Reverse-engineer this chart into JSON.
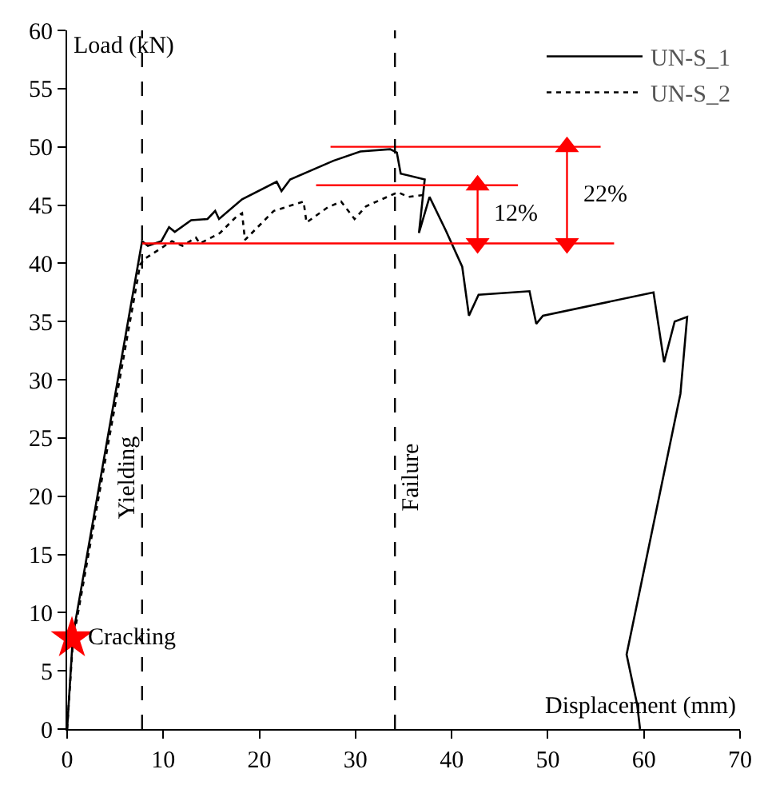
{
  "chart_data": {
    "type": "line",
    "xlabel": "Displacement (mm)",
    "ylabel": "Load (kN)",
    "xlim": [
      0,
      70
    ],
    "xticks": [
      0,
      10,
      20,
      30,
      40,
      50,
      60,
      70
    ],
    "ylim": [
      0,
      60
    ],
    "yticks": [
      0,
      5,
      10,
      15,
      20,
      25,
      30,
      35,
      40,
      45,
      50,
      55,
      60
    ],
    "legend": "top right",
    "marker": "none",
    "series": [
      {
        "name": "UN-S_1",
        "color": "#000000",
        "line_style": "solid",
        "x": [
          0,
          0.6,
          7.8,
          8.4,
          9.8,
          10.6,
          11.2,
          12.9,
          14.6,
          15.4,
          15.8,
          18.2,
          21.8,
          22.3,
          23.2,
          27.7,
          30.5,
          33.6,
          34.3,
          34.7,
          37.2,
          36.6,
          37.7,
          39.4,
          41.1,
          41.8,
          42.8,
          48.1,
          48.8,
          49.5,
          61.0,
          62.1,
          63.2,
          64.5,
          63.8,
          58.2,
          59.3,
          59.6
        ],
        "values": [
          0,
          8,
          41.9,
          41.5,
          41.9,
          43.1,
          42.7,
          43.7,
          43.8,
          44.5,
          43.8,
          45.5,
          47.0,
          46.2,
          47.2,
          48.8,
          49.6,
          49.8,
          49.5,
          47.7,
          47.2,
          42.6,
          45.7,
          42.8,
          39.7,
          35.5,
          37.3,
          37.6,
          34.8,
          35.5,
          37.5,
          31.5,
          35.0,
          35.4,
          28.8,
          6.4,
          2.1,
          0
        ]
      },
      {
        "name": "UN-S_2",
        "color": "#000000",
        "line_style": "dotted",
        "x": [
          0,
          0.6,
          7.6,
          8.1,
          10.9,
          12.0,
          13.4,
          13.8,
          15.9,
          17.6,
          18.2,
          18.5,
          21.5,
          24.6,
          24.9,
          27.1,
          28.5,
          29.9,
          31.1,
          34.4,
          35.5,
          37.4
        ],
        "values": [
          0,
          7.5,
          39.9,
          40.4,
          41.9,
          41.5,
          42.2,
          41.7,
          42.6,
          44.0,
          44.3,
          42.0,
          44.5,
          45.3,
          43.5,
          44.8,
          45.3,
          43.8,
          44.9,
          46.1,
          45.7,
          45.9
        ]
      },
      {
        "color": "#ff0000",
        "x": [
          27.4,
          55.5
        ],
        "values": [
          50,
          50
        ]
      },
      {
        "color": "#ff0000",
        "x": [
          25.9,
          46.9
        ],
        "values": [
          46.7,
          46.7
        ]
      },
      {
        "color": "#ff0000",
        "x": [
          7.8,
          56.9
        ],
        "values": [
          41.7,
          41.7
        ]
      },
      {
        "color": "#ff0000",
        "marker": "triangle",
        "x": [
          42.7,
          42.7
        ],
        "values": [
          46.7,
          41.7
        ]
      },
      {
        "color": "#ff0000",
        "marker": "triangle",
        "x": [
          52.0,
          52.0
        ],
        "values": [
          50,
          41.7
        ]
      },
      {
        "type": "scatter",
        "marker": "star",
        "color": "#ff0000",
        "x": [
          0.5
        ],
        "values": [
          7.8
        ]
      }
    ],
    "ref_lines": [
      {
        "axis": "x",
        "value": 7.8,
        "label": "Yielding",
        "line_style": "dashed",
        "color": "#000000"
      },
      {
        "axis": "x",
        "value": 34.1,
        "label": "Failure",
        "line_style": "dashed",
        "color": "#000000"
      }
    ],
    "annotations": [
      {
        "text": "12%",
        "x": 42.7,
        "y": 44.2
      },
      {
        "text": "22%",
        "x": 52.0,
        "y": 45.85
      },
      {
        "text": "Cracking",
        "x": 0.5,
        "y": 7.8
      }
    ]
  }
}
